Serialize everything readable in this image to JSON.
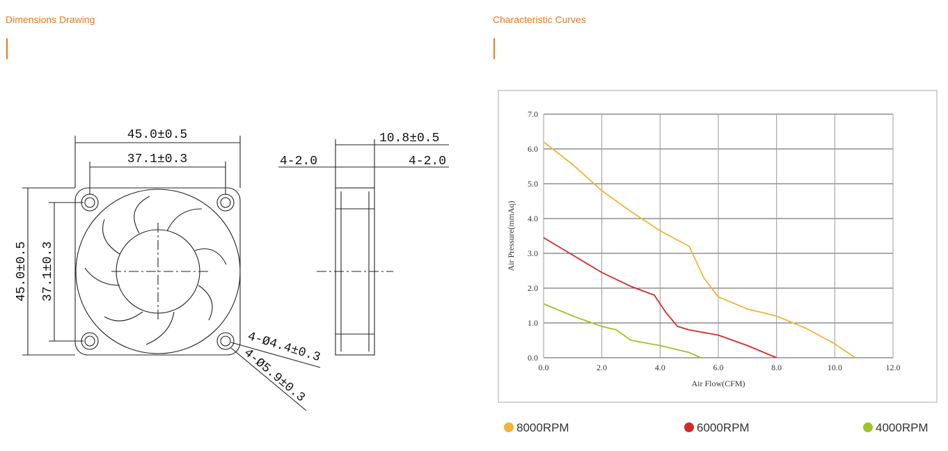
{
  "sections": {
    "left_title": "Dimensions Drawing",
    "right_title": "Characteristic Curves"
  },
  "drawing": {
    "labels": [
      "45.0±0.5",
      "37.1±0.3",
      "4-2.0",
      "10.8±0.5",
      "4-2.0",
      "45.0±0.5",
      "37.1±0.3",
      "4-Ø4.4±0.3",
      "4-Ø5.9±0.3"
    ]
  },
  "chart_data": {
    "type": "line",
    "x_label": "Air Flow(CFM)",
    "y_label": "Air Pressure(mmAq)",
    "xlim": [
      0,
      12
    ],
    "ylim": [
      0,
      7
    ],
    "xticks": [
      {
        "value": 0,
        "label": "0.0"
      },
      {
        "value": 2,
        "label": "2.0"
      },
      {
        "value": 4,
        "label": "4.0"
      },
      {
        "value": 6,
        "label": "6.0"
      },
      {
        "value": 8,
        "label": "8.0"
      },
      {
        "value": 10,
        "label": "10.0"
      },
      {
        "value": 12,
        "label": "12.0"
      }
    ],
    "yticks": [
      {
        "value": 0,
        "label": "0.0"
      },
      {
        "value": 1,
        "label": "1.0"
      },
      {
        "value": 2,
        "label": "2.0"
      },
      {
        "value": 3,
        "label": "3.0"
      },
      {
        "value": 4,
        "label": "4.0"
      },
      {
        "value": 5,
        "label": "5.0"
      },
      {
        "value": 6,
        "label": "6.0"
      },
      {
        "value": 7,
        "label": "7.0"
      }
    ],
    "grid": true,
    "series": [
      {
        "name": "8000RPM",
        "color": "#f0b43a",
        "x": [
          0,
          1,
          2,
          3,
          4,
          5,
          5.5,
          6,
          7,
          8,
          9,
          10,
          10.7
        ],
        "values": [
          6.2,
          5.55,
          4.8,
          4.2,
          3.65,
          3.2,
          2.3,
          1.75,
          1.4,
          1.2,
          0.85,
          0.4,
          0
        ]
      },
      {
        "name": "6000RPM",
        "color": "#d42a2a",
        "x": [
          0,
          1,
          2,
          3,
          3.8,
          4.2,
          4.6,
          5,
          6,
          7,
          8
        ],
        "values": [
          3.45,
          2.95,
          2.45,
          2.05,
          1.8,
          1.3,
          0.9,
          0.8,
          0.65,
          0.35,
          0
        ]
      },
      {
        "name": "4000RPM",
        "color": "#9cc42a",
        "x": [
          0,
          1,
          2,
          2.5,
          3,
          4,
          5,
          5.4
        ],
        "values": [
          1.55,
          1.2,
          0.9,
          0.8,
          0.5,
          0.35,
          0.15,
          0
        ]
      }
    ]
  }
}
